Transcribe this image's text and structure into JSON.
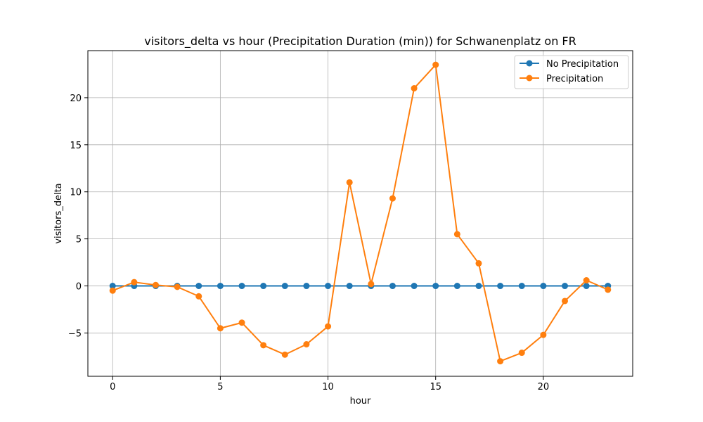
{
  "chart_data": {
    "type": "line",
    "title": "visitors_delta vs hour (Precipitation Duration (min)) for Schwanenplatz on FR",
    "xlabel": "hour",
    "ylabel": "visitors_delta",
    "x": [
      0,
      1,
      2,
      3,
      4,
      5,
      6,
      7,
      8,
      9,
      10,
      11,
      12,
      13,
      14,
      15,
      16,
      17,
      18,
      19,
      20,
      21,
      22,
      23
    ],
    "xlim": [
      -1.15,
      24.15
    ],
    "ylim": [
      -9.6,
      25.0
    ],
    "xticks": [
      0,
      5,
      10,
      15,
      20
    ],
    "yticks": [
      -5,
      0,
      5,
      10,
      15,
      20
    ],
    "xtick_labels": [
      "0",
      "5",
      "10",
      "15",
      "20"
    ],
    "ytick_labels": [
      "−5",
      "0",
      "5",
      "10",
      "15",
      "20"
    ],
    "grid": true,
    "legend_position": "top-right",
    "series": [
      {
        "name": "No Precipitation",
        "color": "#1f77b4",
        "marker": "circle",
        "values": [
          0,
          0,
          0,
          0,
          0,
          0,
          0,
          0,
          0,
          0,
          0,
          0,
          0,
          0,
          0,
          0,
          0,
          0,
          0,
          0,
          0,
          0,
          0,
          0
        ]
      },
      {
        "name": "Precipitation",
        "color": "#ff7f0e",
        "marker": "circle",
        "values": [
          -0.5,
          0.4,
          0.1,
          -0.1,
          -1.1,
          -4.5,
          -3.9,
          -6.3,
          -7.3,
          -6.2,
          -4.3,
          11.0,
          0.2,
          9.3,
          21.0,
          23.5,
          5.5,
          2.4,
          -8.0,
          -7.1,
          -5.2,
          -1.6,
          0.6,
          -0.4
        ]
      }
    ]
  }
}
